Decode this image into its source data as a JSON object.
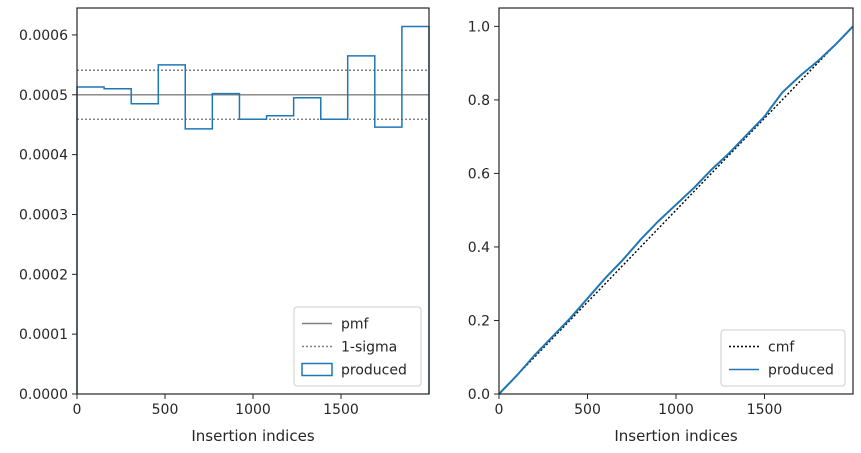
{
  "chart_data": [
    {
      "type": "step",
      "xlabel": "Insertion indices",
      "ylabel": "",
      "xlim": [
        0,
        2000
      ],
      "ylim": [
        0,
        0.000645
      ],
      "xticks": [
        0,
        500,
        1000,
        1500
      ],
      "xtick_labels": [
        "0",
        "500",
        "1000",
        "1500"
      ],
      "yticks": [
        0,
        0.0001,
        0.0002,
        0.0003,
        0.0004,
        0.0005,
        0.0006
      ],
      "ytick_labels": [
        "0.0000",
        "0.0001",
        "0.0002",
        "0.0003",
        "0.0004",
        "0.0005",
        "0.0006"
      ],
      "grid": false,
      "legend": {
        "position": "lower right",
        "entries": [
          "pmf",
          "1-sigma",
          "produced"
        ]
      },
      "series": [
        {
          "name": "pmf",
          "kind": "hline",
          "style": "solid",
          "color": "#808080",
          "y": 0.0005
        },
        {
          "name": "1-sigma",
          "kind": "hlines",
          "style": "dotted",
          "color": "#808080",
          "y": [
            0.000541,
            0.000459
          ]
        },
        {
          "name": "produced",
          "kind": "histogram-step",
          "color": "#1f77b4",
          "bin_edges": [
            0,
            154,
            308,
            462,
            615,
            769,
            923,
            1077,
            1231,
            1385,
            1538,
            1692,
            1846,
            2000
          ],
          "values": [
            0.000513,
            0.00051,
            0.000485,
            0.00055,
            0.000443,
            0.000502,
            0.000459,
            0.000465,
            0.000495,
            0.000459,
            0.000565,
            0.000446,
            0.000614
          ]
        }
      ]
    },
    {
      "type": "line",
      "xlabel": "Insertion indices",
      "ylabel": "",
      "xlim": [
        0,
        2000
      ],
      "ylim": [
        0,
        1.05
      ],
      "xticks": [
        0,
        500,
        1000,
        1500
      ],
      "xtick_labels": [
        "0",
        "500",
        "1000",
        "1500"
      ],
      "yticks": [
        0,
        0.2,
        0.4,
        0.6,
        0.8,
        1.0
      ],
      "ytick_labels": [
        "0.0",
        "0.2",
        "0.4",
        "0.6",
        "0.8",
        "1.0"
      ],
      "grid": false,
      "legend": {
        "position": "lower right",
        "entries": [
          "cmf",
          "produced"
        ]
      },
      "series": [
        {
          "name": "cmf",
          "style": "dotted",
          "color": "#000000",
          "x": [
            0,
            2000
          ],
          "y": [
            0,
            1.0
          ]
        },
        {
          "name": "produced",
          "style": "solid",
          "color": "#1f77b4",
          "x": [
            0,
            100,
            200,
            300,
            400,
            500,
            600,
            700,
            800,
            900,
            1000,
            1100,
            1200,
            1300,
            1400,
            1500,
            1600,
            1700,
            1800,
            1900,
            2000
          ],
          "y": [
            0,
            0.05,
            0.105,
            0.155,
            0.205,
            0.26,
            0.315,
            0.365,
            0.42,
            0.47,
            0.515,
            0.56,
            0.61,
            0.655,
            0.705,
            0.755,
            0.82,
            0.865,
            0.905,
            0.95,
            1.0
          ]
        }
      ]
    }
  ]
}
